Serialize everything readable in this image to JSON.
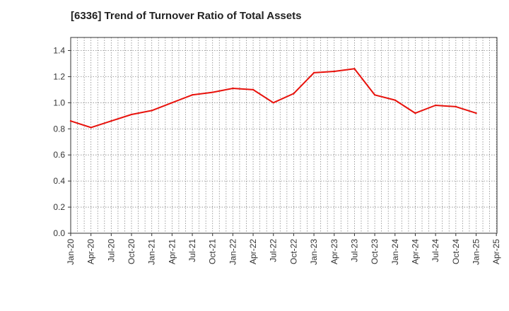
{
  "chart_data": {
    "type": "line",
    "title": "[6336]  Trend of Turnover Ratio of Total Assets",
    "xlabel": "",
    "ylabel": "",
    "ylim": [
      0,
      1.5
    ],
    "yticks": [
      "0.0",
      "0.2",
      "0.4",
      "0.6",
      "0.8",
      "1.0",
      "1.2",
      "1.4"
    ],
    "x_ticks": [
      "Jan-20",
      "Apr-20",
      "Jul-20",
      "Oct-20",
      "Jan-21",
      "Apr-21",
      "Jul-21",
      "Oct-21",
      "Jan-22",
      "Apr-22",
      "Jul-22",
      "Oct-22",
      "Jan-23",
      "Apr-23",
      "Jul-23",
      "Oct-23",
      "Jan-24",
      "Apr-24",
      "Jul-24",
      "Oct-24",
      "Jan-25",
      "Apr-25"
    ],
    "grid": true,
    "line_color": "#e8120c",
    "series": [
      {
        "name": "",
        "x": [
          "Jan-20",
          "Apr-20",
          "Jul-20",
          "Oct-20",
          "Jan-21",
          "Apr-21",
          "Jul-21",
          "Oct-21",
          "Jan-22",
          "Apr-22",
          "Jul-22",
          "Oct-22",
          "Jan-23",
          "Apr-23",
          "Jul-23",
          "Oct-23",
          "Jan-24",
          "Apr-24",
          "Jul-24",
          "Oct-24",
          "Jan-25"
        ],
        "values": [
          0.86,
          0.81,
          0.86,
          0.91,
          0.94,
          1.0,
          1.06,
          1.08,
          1.11,
          1.1,
          1.0,
          1.07,
          1.23,
          1.24,
          1.26,
          1.06,
          1.02,
          0.92,
          0.98,
          0.97,
          0.92
        ]
      }
    ]
  }
}
